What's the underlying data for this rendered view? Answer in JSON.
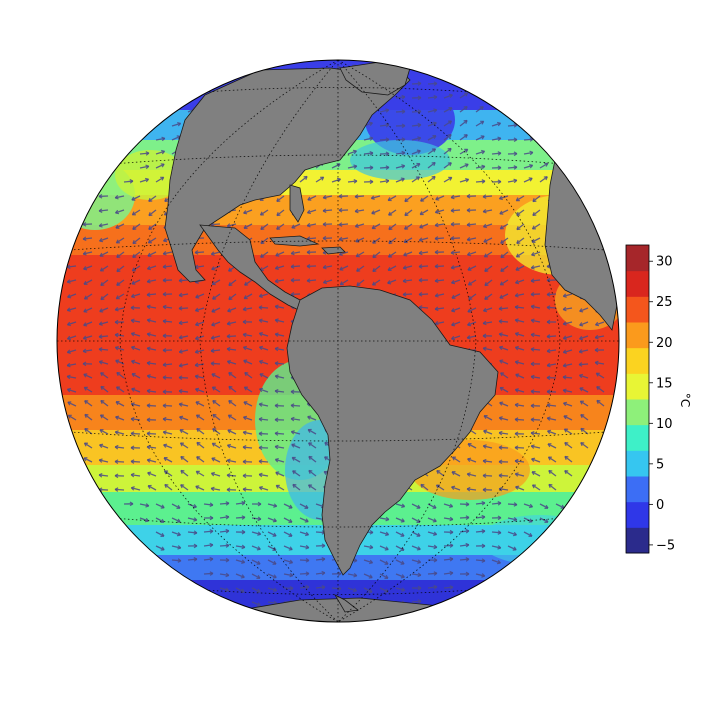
{
  "figure": {
    "projection": "orthographic",
    "ocean_field": "sea surface temperature",
    "land_color": "#808080",
    "background": "#ffffff",
    "graticule_color": "#000000"
  },
  "colorbar": {
    "unit": "°C",
    "min": -6,
    "max": 32,
    "ticks": [
      "30",
      "25",
      "20",
      "15",
      "10",
      "5",
      "0",
      "−5"
    ],
    "colormap": [
      "#2b2b8c",
      "#2f37e8",
      "#3c6ef5",
      "#36c6f0",
      "#3ef0c8",
      "#8ef07a",
      "#e8f535",
      "#fbd320",
      "#fb9a1c",
      "#f4561c",
      "#d9261e",
      "#a6262a"
    ]
  },
  "wind_vectors": {
    "arrow_color": "#4a4a88"
  }
}
